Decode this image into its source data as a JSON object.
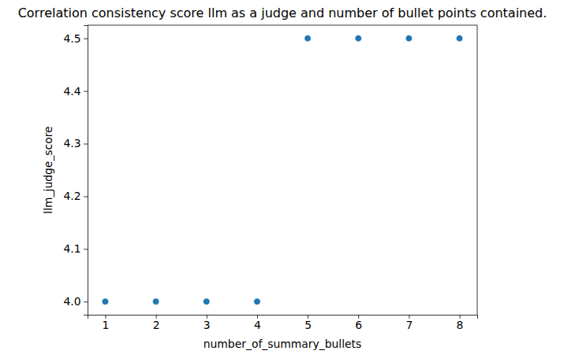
{
  "chart_data": {
    "type": "scatter",
    "title": "Correlation consistency score llm as a judge and number of bullet points contained.",
    "x_label": "number_of_summary_bullets",
    "y_label": "llm_judge_score",
    "x": [
      1,
      2,
      3,
      4,
      5,
      6,
      7,
      8
    ],
    "values": [
      4.0,
      4.0,
      4.0,
      4.0,
      4.5,
      4.5,
      4.5,
      4.5
    ],
    "color": "#1f77b4",
    "marker": "circle",
    "grid": false,
    "xlim": [
      0.65,
      8.35
    ],
    "xticks": [
      1,
      2,
      3,
      4,
      5,
      6,
      7,
      8
    ],
    "ylim": [
      3.975,
      4.525
    ],
    "yticks": [
      {
        "value": 4.0,
        "label": "4.0"
      },
      4.1,
      4.2,
      4.3,
      4.4,
      4.5
    ]
  }
}
